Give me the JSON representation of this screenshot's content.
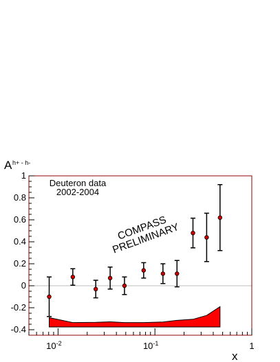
{
  "chart_data": {
    "type": "scatter",
    "title": "",
    "xlabel": "x",
    "ylabel_main": "A",
    "ylabel_sup": "h+ - h-",
    "x_scale": "log",
    "xlim": [
      0.005,
      1
    ],
    "ylim": [
      -0.45,
      1.0
    ],
    "x_tick_labels": [
      {
        "x": 0.01,
        "base": "10",
        "exp": "-2"
      },
      {
        "x": 0.1,
        "base": "10",
        "exp": "-1"
      },
      {
        "x": 1,
        "base": "1",
        "exp": ""
      }
    ],
    "y_ticks": [
      -0.4,
      -0.2,
      0,
      0.2,
      0.4,
      0.6,
      0.8,
      1
    ],
    "y_tick_labels": [
      "-0.4",
      "-0.2",
      "0",
      "0.2",
      "0.4",
      "0.6",
      "0.8",
      "1"
    ],
    "annotations": {
      "dataset_line1": "Deuteron data",
      "dataset_line2": "2002-2004",
      "prelim_line1": "COMPASS",
      "prelim_line2": "PRELIMINARY"
    },
    "marker_color": "#cc0000",
    "band_color": "#ff0000",
    "frame_color": "#8b0000",
    "zero_line_color": "#bbbbbb",
    "series": [
      {
        "x": [
          0.0081,
          0.0142,
          0.0245,
          0.0345,
          0.0485,
          0.0765,
          0.121,
          0.169,
          0.247,
          0.342,
          0.47
        ],
        "y": [
          -0.1,
          0.08,
          -0.03,
          0.07,
          0.0,
          0.14,
          0.11,
          0.11,
          0.48,
          0.44,
          0.62
        ],
        "err": [
          0.18,
          0.075,
          0.08,
          0.1,
          0.08,
          0.07,
          0.09,
          0.12,
          0.135,
          0.22,
          0.3
        ]
      }
    ],
    "systematic_band": {
      "x": [
        0.0081,
        0.0142,
        0.0245,
        0.0345,
        0.0485,
        0.0765,
        0.121,
        0.169,
        0.247,
        0.342,
        0.47
      ],
      "lower": -0.375,
      "upper": [
        -0.29,
        -0.335,
        -0.333,
        -0.328,
        -0.335,
        -0.335,
        -0.33,
        -0.315,
        -0.305,
        -0.27,
        -0.19
      ]
    }
  }
}
